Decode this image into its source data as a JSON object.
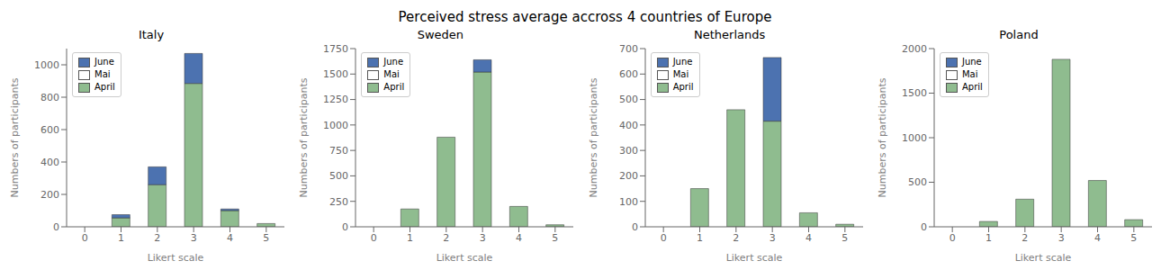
{
  "title": "Perceived stress average accross 4 countries of Europe",
  "chart_data": [
    {
      "type": "bar",
      "title": "Italy",
      "xlabel": "Likert scale",
      "ylabel": "Numbers of participants",
      "x": [
        0,
        1,
        2,
        3,
        4,
        5
      ],
      "xlim": [
        -0.5,
        5.5
      ],
      "xticks": [
        0,
        1,
        2,
        3,
        4,
        5
      ],
      "ylim": [
        0,
        1100
      ],
      "yticks": [
        0,
        200,
        400,
        600,
        800,
        1000
      ],
      "stacked": true,
      "legend": "upper left",
      "grid": false,
      "series": [
        {
          "name": "June",
          "color": "#4C72B0",
          "values": [
            0,
            20,
            110,
            185,
            10,
            0
          ]
        },
        {
          "name": "Mai",
          "color": "#FFFFFF",
          "values": [
            0,
            0,
            0,
            0,
            0,
            0
          ]
        },
        {
          "name": "April",
          "color": "#8FBC8F",
          "values": [
            0,
            55,
            260,
            885,
            100,
            20
          ]
        }
      ]
    },
    {
      "type": "bar",
      "title": "Sweden",
      "xlabel": "Likert scale",
      "ylabel": "Numbers of participants",
      "x": [
        0,
        1,
        2,
        3,
        4,
        5
      ],
      "xlim": [
        -0.5,
        5.5
      ],
      "xticks": [
        0,
        1,
        2,
        3,
        4,
        5
      ],
      "ylim": [
        0,
        1750
      ],
      "yticks": [
        0,
        250,
        500,
        750,
        1000,
        1250,
        1500,
        1750
      ],
      "stacked": true,
      "legend": "upper left",
      "grid": false,
      "series": [
        {
          "name": "June",
          "color": "#4C72B0",
          "values": [
            0,
            0,
            0,
            120,
            0,
            0
          ]
        },
        {
          "name": "Mai",
          "color": "#FFFFFF",
          "values": [
            0,
            0,
            0,
            0,
            0,
            0
          ]
        },
        {
          "name": "April",
          "color": "#8FBC8F",
          "values": [
            0,
            175,
            880,
            1520,
            200,
            20
          ]
        }
      ]
    },
    {
      "type": "bar",
      "title": "Netherlands",
      "xlabel": "Likert scale",
      "ylabel": "Numbers of participants",
      "x": [
        0,
        1,
        2,
        3,
        4,
        5
      ],
      "xlim": [
        -0.5,
        5.5
      ],
      "xticks": [
        0,
        1,
        2,
        3,
        4,
        5
      ],
      "ylim": [
        0,
        700
      ],
      "yticks": [
        0,
        100,
        200,
        300,
        400,
        500,
        600,
        700
      ],
      "stacked": true,
      "legend": "upper left",
      "grid": false,
      "series": [
        {
          "name": "June",
          "color": "#4C72B0",
          "values": [
            0,
            0,
            0,
            250,
            0,
            0
          ]
        },
        {
          "name": "Mai",
          "color": "#FFFFFF",
          "values": [
            0,
            0,
            0,
            0,
            0,
            0
          ]
        },
        {
          "name": "April",
          "color": "#8FBC8F",
          "values": [
            0,
            150,
            460,
            415,
            55,
            10
          ]
        }
      ]
    },
    {
      "type": "bar",
      "title": "Poland",
      "xlabel": "Likert scale",
      "ylabel": "Numbers of participants",
      "x": [
        0,
        1,
        2,
        3,
        4,
        5
      ],
      "xlim": [
        -0.5,
        5.5
      ],
      "xticks": [
        0,
        1,
        2,
        3,
        4,
        5
      ],
      "ylim": [
        0,
        2000
      ],
      "yticks": [
        0,
        500,
        1000,
        1500,
        2000
      ],
      "stacked": true,
      "legend": "upper left",
      "grid": false,
      "series": [
        {
          "name": "June",
          "color": "#4C72B0",
          "values": [
            0,
            0,
            0,
            0,
            0,
            0
          ]
        },
        {
          "name": "Mai",
          "color": "#FFFFFF",
          "values": [
            0,
            0,
            0,
            0,
            0,
            0
          ]
        },
        {
          "name": "April",
          "color": "#8FBC8F",
          "values": [
            0,
            60,
            310,
            1880,
            520,
            80
          ]
        }
      ]
    }
  ]
}
